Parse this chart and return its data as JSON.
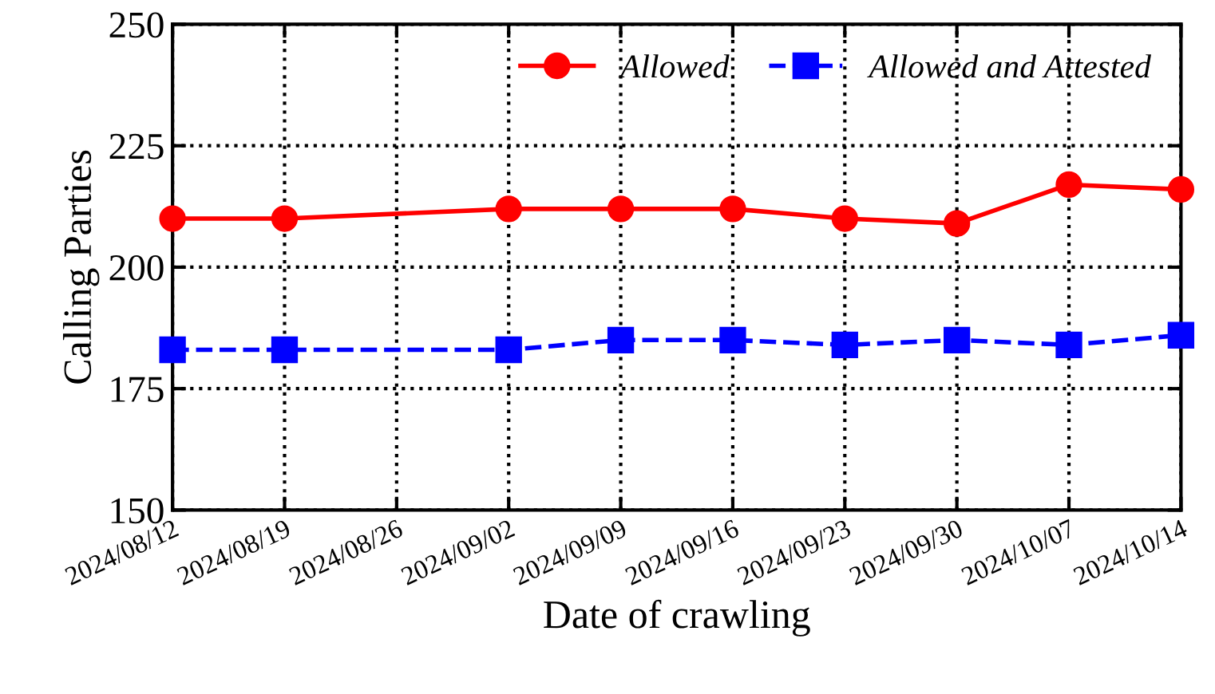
{
  "chart_data": {
    "type": "line",
    "xlabel": "Date of crawling",
    "ylabel": "Calling Parties",
    "x": [
      "2024-08-12",
      "2024-08-19",
      "2024-09-02",
      "2024-09-09",
      "2024-09-16",
      "2024-09-23",
      "2024-09-30",
      "2024-10-07",
      "2024-10-14"
    ],
    "series": [
      {
        "name": "Allowed",
        "color": "#ff0000",
        "marker": "circle",
        "line_style": "solid",
        "values": [
          210,
          210,
          212,
          212,
          212,
          210,
          209,
          217,
          216
        ]
      },
      {
        "name": "Allowed and Attested",
        "color": "#0000ff",
        "marker": "square",
        "line_style": "dashed",
        "values": [
          183,
          183,
          183,
          185,
          185,
          184,
          185,
          184,
          186
        ]
      }
    ],
    "xlim": [
      "2024-08-12",
      "2024-10-14"
    ],
    "xticks": [
      {
        "value": "2024-08-12",
        "label": "2024/08/12"
      },
      {
        "value": "2024-08-19",
        "label": "2024/08/19"
      },
      {
        "value": "2024-08-26",
        "label": "2024/08/26"
      },
      {
        "value": "2024-09-02",
        "label": "2024/09/02"
      },
      {
        "value": "2024-09-09",
        "label": "2024/09/09"
      },
      {
        "value": "2024-09-16",
        "label": "2024/09/16"
      },
      {
        "value": "2024-09-23",
        "label": "2024/09/23"
      },
      {
        "value": "2024-09-30",
        "label": "2024/09/30"
      },
      {
        "value": "2024-10-07",
        "label": "2024/10/07"
      },
      {
        "value": "2024-10-14",
        "label": "2024/10/14"
      }
    ],
    "ylim": [
      150,
      250
    ],
    "yticks": [
      150,
      175,
      200,
      225,
      250
    ],
    "grid": true,
    "legend": "top right"
  }
}
